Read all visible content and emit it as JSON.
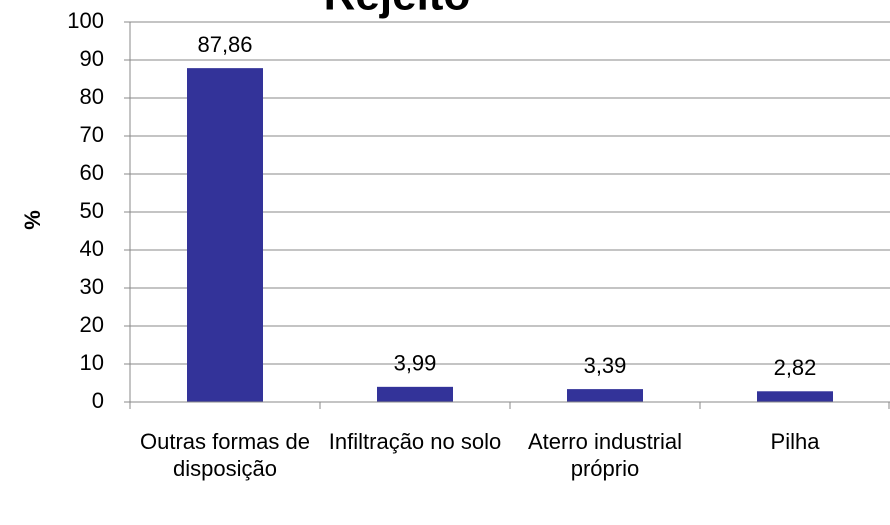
{
  "chart_data": {
    "type": "bar",
    "title": "Rejeito",
    "y_label": "%",
    "categories": [
      "Outras formas de disposição",
      "Infiltração no solo",
      "Aterro industrial próprio",
      "Pilha"
    ],
    "values": [
      87.86,
      3.99,
      3.39,
      2.82
    ],
    "value_labels": [
      "87,86",
      "3,99",
      "3,39",
      "2,82"
    ],
    "color": "#333399",
    "ylim": [
      0,
      100
    ],
    "yticks": [
      0,
      10,
      20,
      30,
      40,
      50,
      60,
      70,
      80,
      90,
      100
    ],
    "grid": true
  }
}
